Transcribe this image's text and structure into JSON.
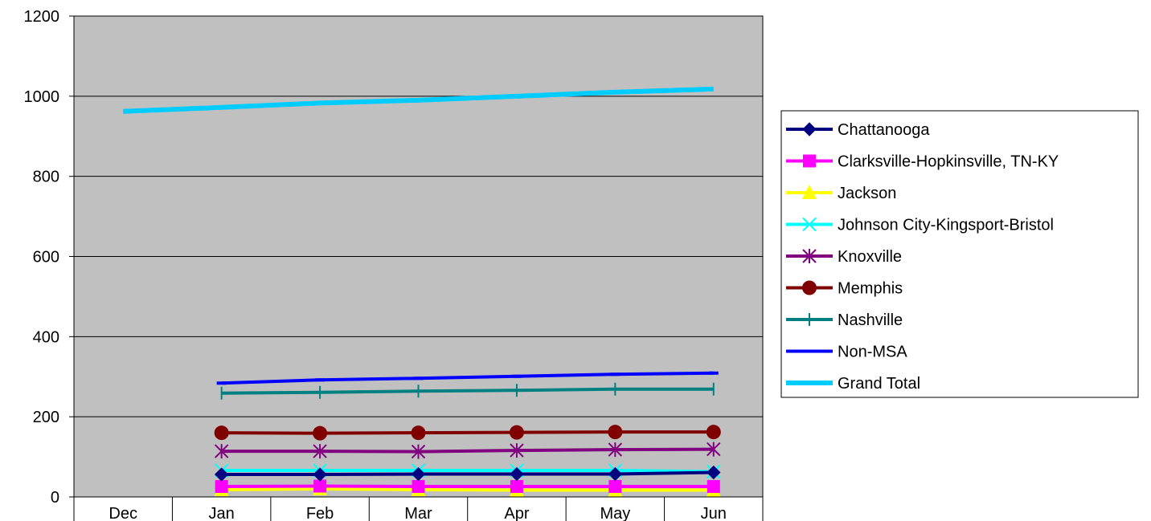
{
  "chart_data": {
    "type": "line",
    "title": "",
    "xlabel": "",
    "ylabel": "",
    "categories": [
      "Dec",
      "Jan",
      "Feb",
      "Mar",
      "Apr",
      "May",
      "Jun"
    ],
    "ylim": [
      0,
      1200
    ],
    "yticks": [
      0,
      200,
      400,
      600,
      800,
      1000,
      1200
    ],
    "grid": true,
    "plot_background": "#c0c0c0",
    "legend_position": "right",
    "series": [
      {
        "name": "Chattanooga",
        "color": "#000080",
        "marker": "diamond",
        "values": [
          null,
          56,
          56,
          57,
          57,
          57,
          61
        ]
      },
      {
        "name": "Clarksville-Hopkinsville, TN-KY",
        "color": "#ff00ff",
        "marker": "square",
        "values": [
          null,
          26,
          27,
          26,
          26,
          26,
          26
        ]
      },
      {
        "name": "Jackson",
        "color": "#ffff00",
        "marker": "triangle",
        "values": [
          null,
          18,
          20,
          18,
          17,
          17,
          17
        ]
      },
      {
        "name": "Johnson City-Kingsport-Bristol",
        "color": "#00ffff",
        "marker": "x",
        "values": [
          null,
          66,
          66,
          66,
          66,
          66,
          63
        ]
      },
      {
        "name": "Knoxville",
        "color": "#800080",
        "marker": "star",
        "values": [
          null,
          114,
          114,
          113,
          116,
          118,
          119
        ]
      },
      {
        "name": "Memphis",
        "color": "#800000",
        "marker": "circle",
        "values": [
          null,
          160,
          159,
          160,
          161,
          162,
          162
        ]
      },
      {
        "name": "Nashville",
        "color": "#008080",
        "marker": "plus",
        "values": [
          null,
          259,
          261,
          264,
          266,
          269,
          269
        ]
      },
      {
        "name": "Non-MSA",
        "color": "#0000ff",
        "marker": "dash",
        "values": [
          null,
          284,
          292,
          296,
          301,
          306,
          309
        ]
      },
      {
        "name": "Grand Total",
        "color": "#00ccff",
        "marker": "none",
        "values": [
          962,
          972,
          983,
          990,
          1000,
          1010,
          1018
        ]
      }
    ]
  }
}
